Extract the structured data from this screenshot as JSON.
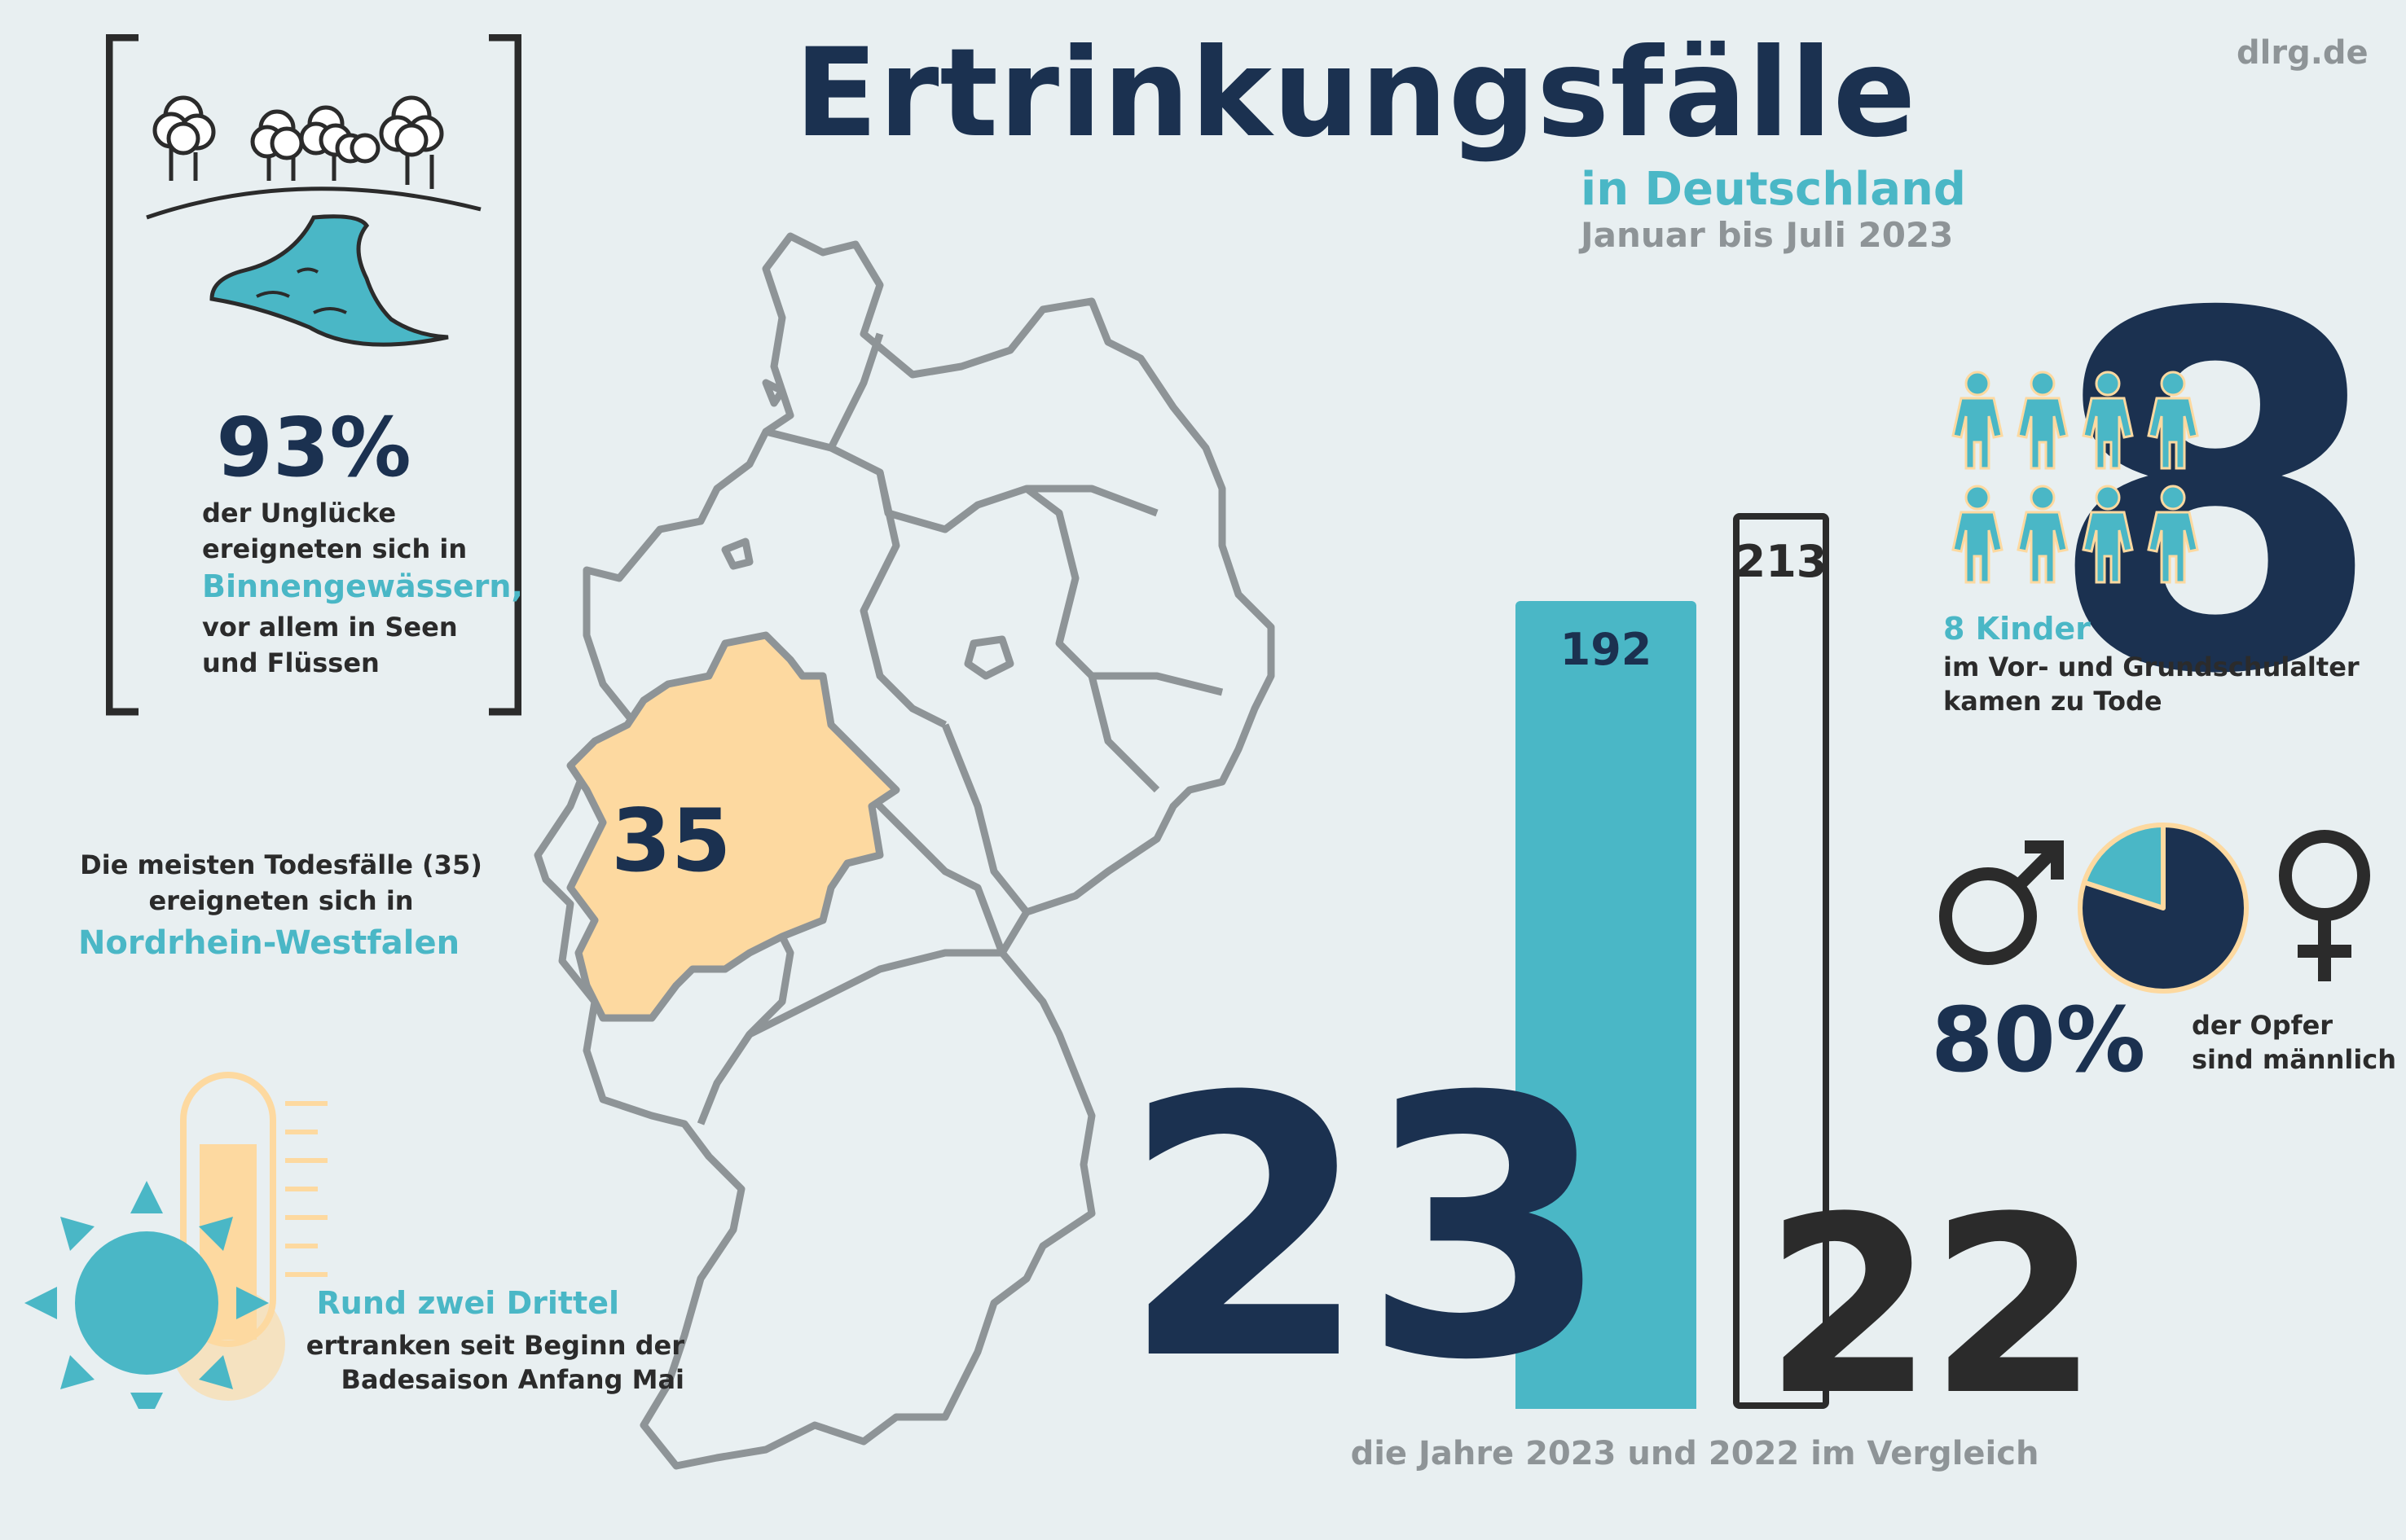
{
  "header": {
    "title": "Ertrinkungsfälle",
    "subtitle": "in Deutschland",
    "period": "Januar bis Juli 2023",
    "brand": "dlrg.de"
  },
  "inland_waters": {
    "percent": "93%",
    "line1": "der Unglücke",
    "line2": "ereigneten sich in",
    "highlight": "Binnengewässern,",
    "line4": "vor allem in Seen",
    "line5": "und Flüssen"
  },
  "state": {
    "count": "35",
    "line1": "Die meisten Todesfälle (35)",
    "line2": "ereigneten sich in",
    "name": "Nordrhein-Westfalen"
  },
  "season": {
    "highlight": "Rund zwei Drittel",
    "line2": "ertranken seit Beginn der",
    "line3": "Badesaison Anfang Mai"
  },
  "comparison": {
    "year_a_short": "23",
    "year_b_short": "22",
    "caption": "die Jahre 2023 und 2022 im Vergleich",
    "label_2023": "192",
    "label_2022": "213"
  },
  "chart_data": {
    "type": "bar",
    "categories": [
      "2023",
      "2022"
    ],
    "values": [
      192,
      213
    ]
  },
  "children": {
    "big_number": "8",
    "headline": "8 Kinder",
    "line2": "im Vor- und Grundschulalter",
    "line3": "kamen zu Tode",
    "icon": "child-figures-icon"
  },
  "gender": {
    "percent": "80%",
    "line1": "der Opfer",
    "line2": "sind männlich",
    "male_share": 0.8,
    "icons": [
      "male-symbol-icon",
      "female-symbol-icon"
    ]
  },
  "colors": {
    "navy": "#1b3150",
    "teal": "#4ab7c6",
    "nrw": "#fdd9a0",
    "grey": "#8e9497"
  }
}
